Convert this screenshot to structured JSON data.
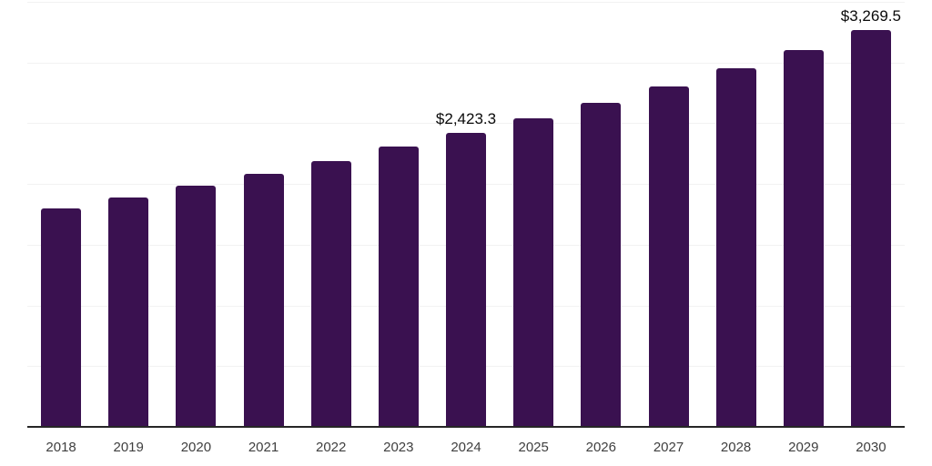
{
  "chart_data": {
    "type": "bar",
    "title": "",
    "categories": [
      "2018",
      "2019",
      "2020",
      "2021",
      "2022",
      "2023",
      "2024",
      "2025",
      "2026",
      "2027",
      "2028",
      "2029",
      "2030"
    ],
    "values": [
      1798,
      1891,
      1984,
      2085,
      2186,
      2305,
      2423.3,
      2544,
      2671,
      2805,
      2954,
      3103,
      3269.5
    ],
    "data_labels": [
      "",
      "",
      "",
      "",
      "",
      "",
      "$2,423.3",
      "",
      "",
      "",
      "",
      "",
      "$3,269.5"
    ],
    "labeled_points": [
      {
        "category": "2024",
        "label": "$2,423.3",
        "value": 2423.3
      },
      {
        "category": "2030",
        "label": "$3,269.5",
        "value": 3269.5
      }
    ],
    "xlabel": "",
    "ylabel": "",
    "ylim": [
      0,
      3500
    ],
    "gridline_step": 500,
    "grid": "horizontal-only",
    "legend_position": "none",
    "y_axis_tick_labels_visible": false
  },
  "style": {
    "background_color": "#ffffff",
    "bar_color": "#3A1150",
    "gridline_color": "#f2f2f2",
    "axis_line_color": "#262626",
    "tick_label_color": "#3f3f3f",
    "data_label_color": "#0a0a0a"
  }
}
